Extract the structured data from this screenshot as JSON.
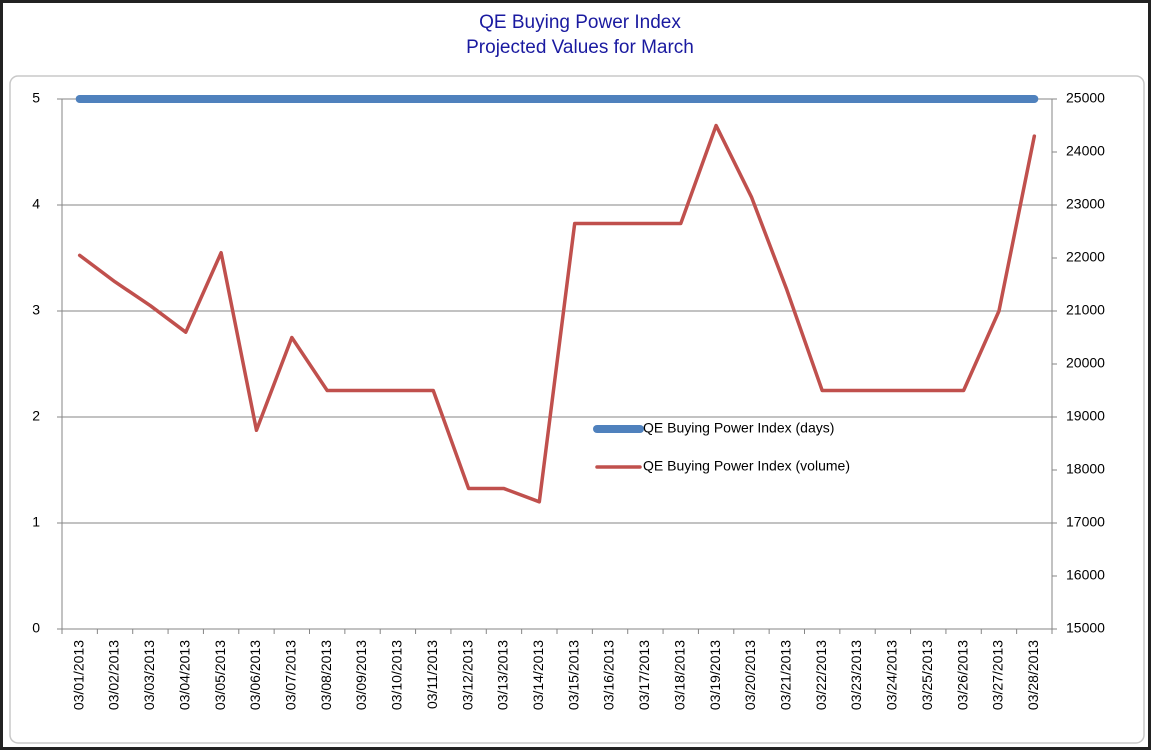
{
  "chart_data": {
    "type": "line",
    "title": "QE Buying Power Index",
    "subtitle": "Projected Values for March",
    "categories": [
      "03/01/2013",
      "03/02/2013",
      "03/03/2013",
      "03/04/2013",
      "03/05/2013",
      "03/06/2013",
      "03/07/2013",
      "03/08/2013",
      "03/09/2013",
      "03/10/2013",
      "03/11/2013",
      "03/12/2013",
      "03/13/2013",
      "03/14/2013",
      "03/15/2013",
      "03/16/2013",
      "03/17/2013",
      "03/18/2013",
      "03/19/2013",
      "03/20/2013",
      "03/21/2013",
      "03/22/2013",
      "03/23/2013",
      "03/24/2013",
      "03/25/2013",
      "03/26/2013",
      "03/27/2013",
      "03/28/2013"
    ],
    "series": [
      {
        "name": "QE Buying Power Index (days)",
        "color": "#4f81bd",
        "axis": "y",
        "values": [
          5,
          5,
          5,
          5,
          5,
          5,
          5,
          5,
          5,
          5,
          5,
          5,
          5,
          5,
          5,
          5,
          5,
          5,
          5,
          5,
          5,
          5,
          5,
          5,
          5,
          5,
          5,
          5
        ]
      },
      {
        "name": "QE Buying Power Index (volume)",
        "color": "#c0504d",
        "axis": "y2",
        "values": [
          22050,
          21550,
          21100,
          20600,
          22100,
          18750,
          20500,
          19500,
          19500,
          19500,
          19500,
          17650,
          17650,
          17400,
          22650,
          22650,
          22650,
          22650,
          24500,
          23150,
          21400,
          19500,
          19500,
          19500,
          19500,
          19500,
          21000,
          24300
        ]
      }
    ],
    "ylim": [
      0,
      5
    ],
    "yticks": [
      0,
      1,
      2,
      3,
      4,
      5
    ],
    "y2lim": [
      15000,
      25000
    ],
    "y2ticks": [
      15000,
      16000,
      17000,
      18000,
      19000,
      20000,
      21000,
      22000,
      23000,
      24000,
      25000
    ],
    "grid": true
  }
}
